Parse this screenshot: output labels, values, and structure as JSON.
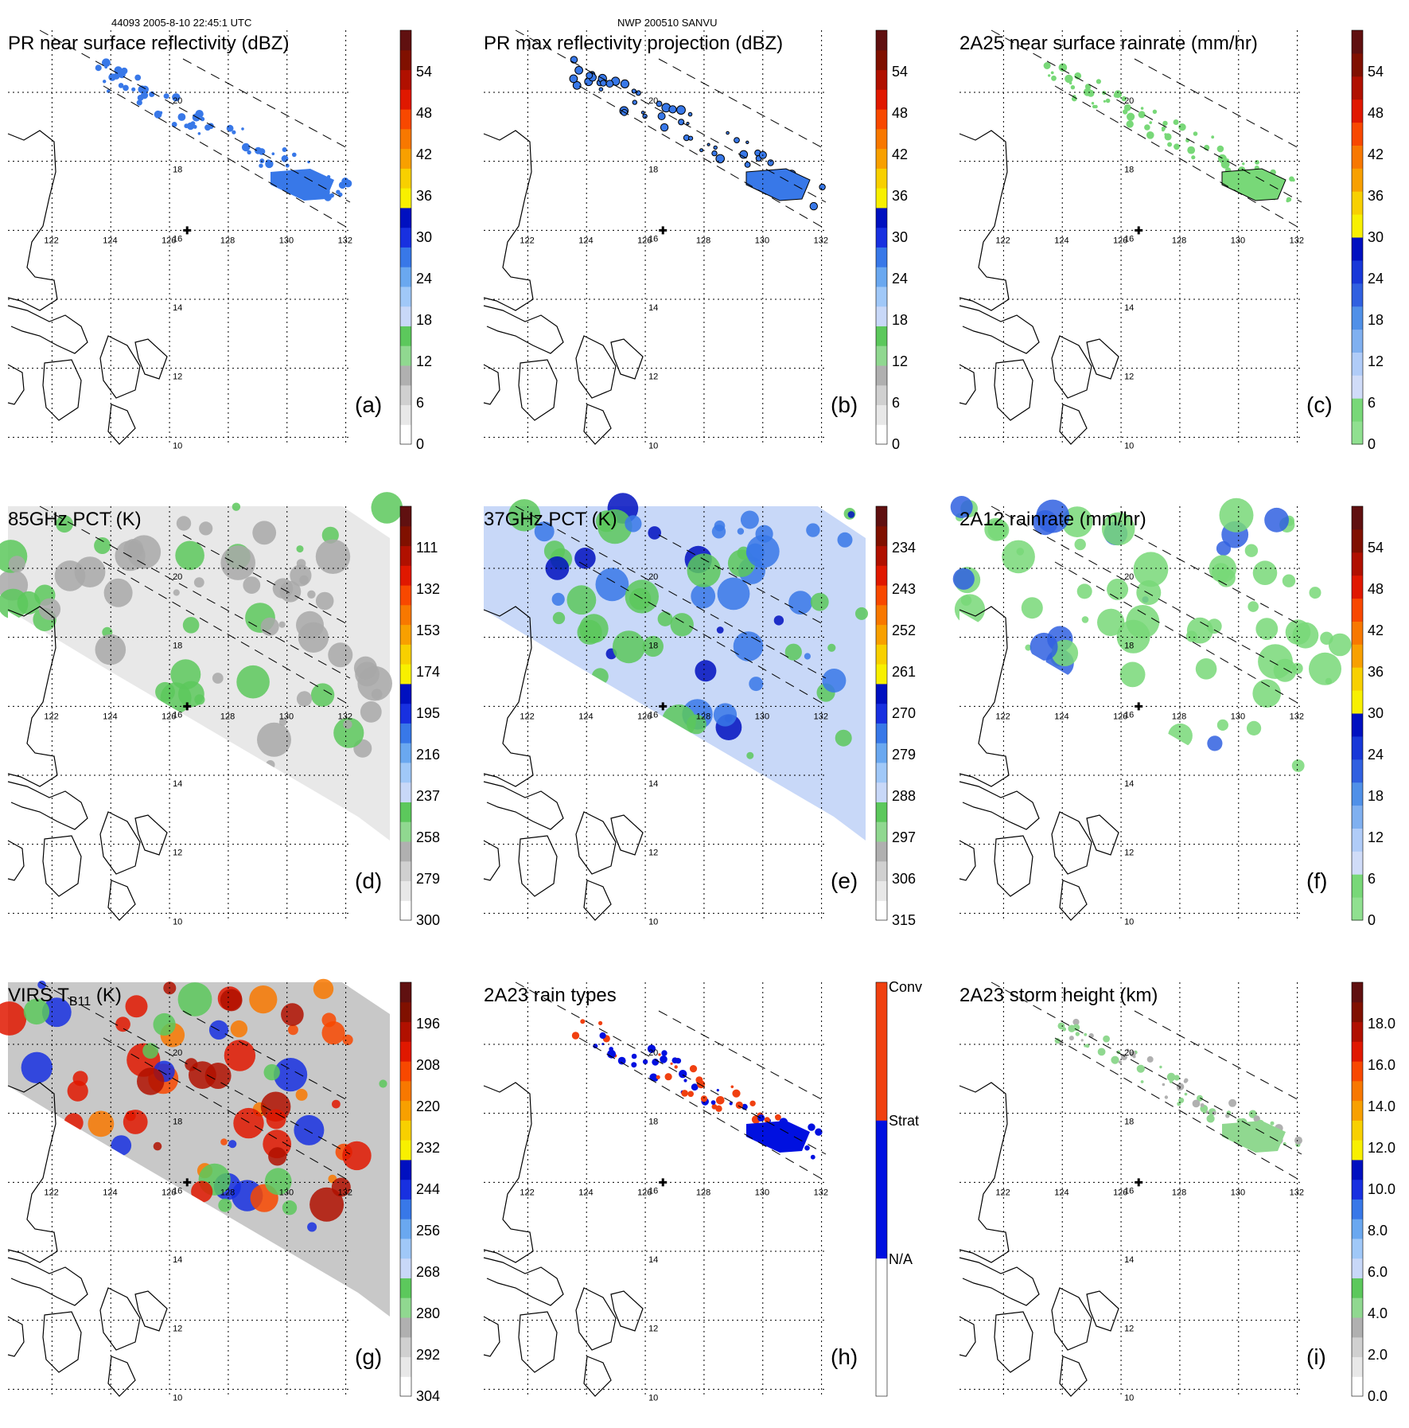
{
  "header": {
    "left": "44093 2005-8-10 22:45:1 UTC",
    "center": "NWP 200510 SANVU"
  },
  "map": {
    "lon_ticks": [
      122,
      124,
      126,
      128,
      130,
      132
    ],
    "lat_ticks": [
      20,
      18,
      16,
      14,
      12,
      10
    ],
    "marker": {
      "lon": 126.6,
      "lat": 16.0
    },
    "swath_edges": "dashed"
  },
  "chart_data": [
    {
      "type": "heatmap",
      "id": "a",
      "title": "PR near surface reflectivity (dBZ)",
      "panel_label": "(a)",
      "colorbar_ticks": [
        "0",
        "6",
        "12",
        "18",
        "24",
        "30",
        "36",
        "42",
        "48",
        "54"
      ],
      "colors": [
        "#ffffff",
        "#e8e8e8",
        "#d0d0d0",
        "#b0b0b0",
        "#90d890",
        "#5cc85c",
        "#c8d8f8",
        "#a0c8f8",
        "#6aa8f0",
        "#3878e8",
        "#1830e0",
        "#0010c0",
        "#f8f000",
        "#f8d000",
        "#f8a000",
        "#f87800",
        "#f84800",
        "#e01800",
        "#b01000",
        "#801000",
        "#601010"
      ]
    },
    {
      "type": "heatmap",
      "id": "b",
      "title": "PR max reflectivity projection (dBZ)",
      "panel_label": "(b)",
      "colorbar_ticks": [
        "0",
        "6",
        "12",
        "18",
        "24",
        "30",
        "36",
        "42",
        "48",
        "54"
      ],
      "colors": [
        "#ffffff",
        "#e8e8e8",
        "#d0d0d0",
        "#b0b0b0",
        "#90d890",
        "#5cc85c",
        "#c8d8f8",
        "#a0c8f8",
        "#6aa8f0",
        "#3878e8",
        "#1830e0",
        "#0010c0",
        "#f8f000",
        "#f8d000",
        "#f8a000",
        "#f87800",
        "#f84800",
        "#e01800",
        "#b01000",
        "#801000",
        "#601010"
      ]
    },
    {
      "type": "heatmap",
      "id": "c",
      "title": "2A25 near surface rainrate (mm/hr)",
      "panel_label": "(c)",
      "colorbar_ticks": [
        "0",
        "6",
        "12",
        "18",
        "24",
        "30",
        "36",
        "42",
        "48",
        "54"
      ],
      "colors": [
        "#90e090",
        "#78d878",
        "#d0dcf8",
        "#b0ccf8",
        "#80b0f0",
        "#5090e8",
        "#3060e0",
        "#1838d8",
        "#0010c0",
        "#f8f000",
        "#f8d000",
        "#f8a000",
        "#f87800",
        "#f84800",
        "#e01800",
        "#b01000",
        "#801000",
        "#601010"
      ]
    },
    {
      "type": "heatmap",
      "id": "d",
      "title": "85GHz PCT (K)",
      "panel_label": "(d)",
      "colorbar_ticks": [
        "300",
        "279",
        "258",
        "237",
        "216",
        "195",
        "174",
        "153",
        "132",
        "111"
      ],
      "colors": [
        "#ffffff",
        "#e8e8e8",
        "#d0d0d0",
        "#b0b0b0",
        "#90d890",
        "#5cc85c",
        "#c8d8f8",
        "#a0c8f8",
        "#6aa8f0",
        "#3878e8",
        "#1830e0",
        "#0010c0",
        "#f8f000",
        "#f8d000",
        "#f8a000",
        "#f87800",
        "#f84800",
        "#e01800",
        "#b01000",
        "#801000",
        "#601010"
      ]
    },
    {
      "type": "heatmap",
      "id": "e",
      "title": "37GHz PCT (K)",
      "panel_label": "(e)",
      "colorbar_ticks": [
        "315",
        "306",
        "297",
        "288",
        "279",
        "270",
        "261",
        "252",
        "243",
        "234"
      ],
      "colors": [
        "#ffffff",
        "#e8e8e8",
        "#d0d0d0",
        "#b0b0b0",
        "#90d890",
        "#5cc85c",
        "#c8d8f8",
        "#a0c8f8",
        "#6aa8f0",
        "#3878e8",
        "#1830e0",
        "#0010c0",
        "#f8f000",
        "#f8d000",
        "#f8a000",
        "#f87800",
        "#f84800",
        "#e01800",
        "#b01000",
        "#801000",
        "#601010"
      ]
    },
    {
      "type": "heatmap",
      "id": "f",
      "title": "2A12 rainrate (mm/hr)",
      "panel_label": "(f)",
      "colorbar_ticks": [
        "0",
        "6",
        "12",
        "18",
        "24",
        "30",
        "36",
        "42",
        "48",
        "54"
      ],
      "colors": [
        "#90e090",
        "#78d878",
        "#d0dcf8",
        "#b0ccf8",
        "#80b0f0",
        "#5090e8",
        "#3060e0",
        "#1838d8",
        "#0010c0",
        "#f8f000",
        "#f8d000",
        "#f8a000",
        "#f87800",
        "#f84800",
        "#e01800",
        "#b01000",
        "#801000",
        "#601010"
      ]
    },
    {
      "type": "heatmap",
      "id": "g",
      "title": "VIRS T",
      "title_sub": "B11",
      "title_suffix": " (K)",
      "panel_label": "(g)",
      "colorbar_ticks": [
        "304",
        "292",
        "280",
        "268",
        "256",
        "244",
        "232",
        "220",
        "208",
        "196"
      ],
      "colors": [
        "#ffffff",
        "#e8e8e8",
        "#d0d0d0",
        "#b0b0b0",
        "#90d890",
        "#5cc85c",
        "#c8d8f8",
        "#a0c8f8",
        "#6aa8f0",
        "#3878e8",
        "#1830e0",
        "#0010c0",
        "#f8f000",
        "#f8d000",
        "#f8a000",
        "#f87800",
        "#f84800",
        "#e01800",
        "#b01000",
        "#801000",
        "#601010"
      ]
    },
    {
      "type": "heatmap",
      "id": "h",
      "title": "2A23 rain types",
      "panel_label": "(h)",
      "categorical_labels": [
        "N/A",
        "Strat",
        "Conv"
      ],
      "colors": [
        "#ffffff",
        "#0010e0",
        "#f04010"
      ]
    },
    {
      "type": "heatmap",
      "id": "i",
      "title": "2A23 storm height (km)",
      "panel_label": "(i)",
      "colorbar_ticks": [
        "0.0",
        "2.0",
        "4.0",
        "6.0",
        "8.0",
        "10.0",
        "12.0",
        "14.0",
        "16.0",
        "18.0"
      ],
      "colors": [
        "#ffffff",
        "#e8e8e8",
        "#d0d0d0",
        "#b0b0b0",
        "#90d890",
        "#5cc85c",
        "#c8d8f8",
        "#a0c8f8",
        "#6aa8f0",
        "#3878e8",
        "#1830e0",
        "#0010c0",
        "#f8f000",
        "#f8d000",
        "#f8a000",
        "#f87800",
        "#f84800",
        "#e01800",
        "#b01000",
        "#801000",
        "#601010"
      ]
    }
  ]
}
